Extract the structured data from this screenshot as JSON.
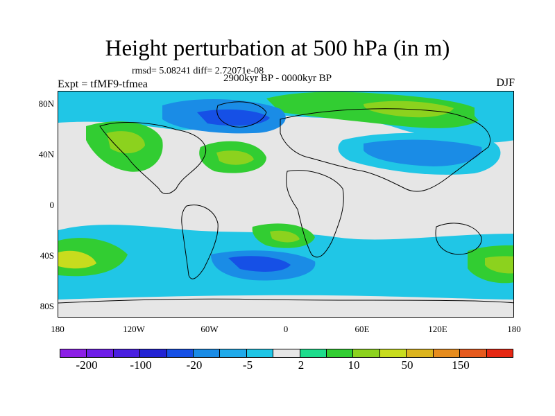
{
  "title": "Height perturbation at 500 hPa (in m)",
  "stats": "rmsd= 5.08241 diff= 2.72071e-08",
  "subtitle": "2900kyr BP - 0000kyr BP",
  "left_label": "Expt = tfMF9-tfmea",
  "right_label": "DJF",
  "lat_ticks": [
    "80N",
    "40N",
    "0",
    "40S",
    "80S"
  ],
  "lon_ticks": [
    "180",
    "120W",
    "60W",
    "0",
    "60E",
    "120E",
    "180"
  ],
  "colorbar": {
    "colors": [
      "#8c1fe6",
      "#6e1ee8",
      "#4a1fe0",
      "#2323d4",
      "#1650e6",
      "#1a8ce6",
      "#20aaea",
      "#20c6e6",
      "#e6e6e6",
      "#1edc8c",
      "#32cd32",
      "#8cd21e",
      "#c8dc1e",
      "#dcb41e",
      "#e68c1e",
      "#e65a1e",
      "#e62814"
    ],
    "labels": [
      "-200",
      "-100",
      "-20",
      "-5",
      "2",
      "10",
      "50",
      "150"
    ]
  },
  "map_colors": {
    "neutral": "#e6e6e6",
    "green": "#32cd32",
    "teal": "#1edc8c",
    "lime": "#8cd21e",
    "yellow": "#c8dc1e",
    "cyan": "#20c6e6",
    "lightblue": "#20aaea",
    "blue": "#1a8ce6",
    "deepblue": "#1650e6"
  }
}
